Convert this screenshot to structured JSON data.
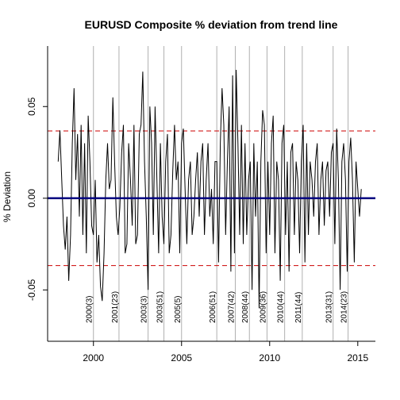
{
  "chart_data": {
    "type": "line",
    "title": "EURUSD Composite  % deviation from trend line",
    "xlabel": "",
    "ylabel": "% Deviation",
    "xlim": [
      1997.4,
      2016.0
    ],
    "ylim": [
      -0.078,
      0.083
    ],
    "x_ticks": [
      2000,
      2005,
      2010,
      2015
    ],
    "x_tick_labels": [
      "2000",
      "2005",
      "2010",
      "2015"
    ],
    "y_ticks": [
      -0.05,
      0.0,
      0.05
    ],
    "y_tick_labels": [
      "-0.05",
      "0.00",
      "0.05"
    ],
    "zero_line": 0.0,
    "threshold_lines": [
      0.0367,
      -0.0367
    ],
    "colors": {
      "series": "#000000",
      "zero_line": "#000080",
      "threshold": "#cc0000",
      "markers": "#b0b0b0"
    },
    "markers": [
      {
        "x": 2000.0,
        "label": "2000(3)"
      },
      {
        "x": 2001.45,
        "label": "2001(23)"
      },
      {
        "x": 2003.1,
        "label": "2003(3)"
      },
      {
        "x": 2004.0,
        "label": "2003(51)"
      },
      {
        "x": 2005.0,
        "label": "2005(5)"
      },
      {
        "x": 2007.0,
        "label": "2006(51)"
      },
      {
        "x": 2008.05,
        "label": "2007(42)"
      },
      {
        "x": 2008.85,
        "label": "2008(44)"
      },
      {
        "x": 2009.85,
        "label": "2009(36)"
      },
      {
        "x": 2010.85,
        "label": "2010(44)"
      },
      {
        "x": 2011.85,
        "label": "2011(44)"
      },
      {
        "x": 2013.6,
        "label": "2013(31)"
      },
      {
        "x": 2014.45,
        "label": "2014(23)"
      }
    ],
    "series": [
      {
        "x": [
          1998.0,
          1998.1,
          1998.2,
          1998.3,
          1998.4,
          1998.5,
          1998.6,
          1998.7,
          1998.8,
          1998.9,
          1999.0,
          1999.1,
          1999.2,
          1999.3,
          1999.4,
          1999.5,
          1999.6,
          1999.7,
          1999.8,
          1999.9,
          2000.0,
          2000.1,
          2000.2,
          2000.3,
          2000.4,
          2000.5,
          2000.6,
          2000.7,
          2000.8,
          2000.9,
          2001.0,
          2001.1,
          2001.2,
          2001.3,
          2001.4,
          2001.5,
          2001.6,
          2001.7,
          2001.8,
          2001.9,
          2002.0,
          2002.1,
          2002.2,
          2002.3,
          2002.4,
          2002.5,
          2002.6,
          2002.7,
          2002.8,
          2002.9,
          2003.0,
          2003.1,
          2003.2,
          2003.3,
          2003.4,
          2003.5,
          2003.6,
          2003.7,
          2003.8,
          2003.9,
          2004.0,
          2004.1,
          2004.2,
          2004.3,
          2004.4,
          2004.5,
          2004.6,
          2004.7,
          2004.8,
          2004.9,
          2005.0,
          2005.1,
          2005.2,
          2005.3,
          2005.4,
          2005.5,
          2005.6,
          2005.7,
          2005.8,
          2005.9,
          2006.0,
          2006.1,
          2006.2,
          2006.3,
          2006.4,
          2006.5,
          2006.6,
          2006.7,
          2006.8,
          2006.9,
          2007.0,
          2007.1,
          2007.2,
          2007.3,
          2007.4,
          2007.5,
          2007.6,
          2007.7,
          2007.8,
          2007.9,
          2008.0,
          2008.1,
          2008.2,
          2008.3,
          2008.4,
          2008.5,
          2008.6,
          2008.7,
          2008.8,
          2008.9,
          2009.0,
          2009.1,
          2009.2,
          2009.3,
          2009.4,
          2009.5,
          2009.6,
          2009.7,
          2009.8,
          2009.9,
          2010.0,
          2010.1,
          2010.2,
          2010.3,
          2010.4,
          2010.5,
          2010.6,
          2010.7,
          2010.8,
          2010.9,
          2011.0,
          2011.1,
          2011.2,
          2011.3,
          2011.4,
          2011.5,
          2011.6,
          2011.7,
          2011.8,
          2011.9,
          2012.0,
          2012.1,
          2012.2,
          2012.3,
          2012.4,
          2012.5,
          2012.6,
          2012.7,
          2012.8,
          2012.9,
          2013.0,
          2013.1,
          2013.2,
          2013.3,
          2013.4,
          2013.5,
          2013.6,
          2013.7,
          2013.8,
          2013.9,
          2014.0,
          2014.1,
          2014.2,
          2014.3,
          2014.4,
          2014.5,
          2014.6,
          2014.7,
          2014.8,
          2014.9,
          2015.0,
          2015.1,
          2015.2
        ],
        "y": [
          0.02,
          0.037,
          0.01,
          -0.015,
          -0.028,
          -0.01,
          -0.045,
          -0.02,
          0.03,
          0.06,
          0.01,
          0.035,
          -0.01,
          0.04,
          -0.02,
          0.03,
          -0.03,
          0.045,
          0.02,
          -0.015,
          -0.02,
          0.01,
          -0.035,
          -0.02,
          -0.048,
          -0.056,
          -0.03,
          0.01,
          0.03,
          0.005,
          0.01,
          0.055,
          0.02,
          -0.01,
          -0.02,
          -0.005,
          0.025,
          0.04,
          -0.03,
          -0.025,
          0.03,
          0.01,
          -0.015,
          0.04,
          -0.025,
          -0.02,
          0.035,
          0.04,
          0.069,
          0.02,
          -0.01,
          -0.05,
          0.05,
          0.03,
          -0.02,
          0.05,
          0.01,
          -0.03,
          0.03,
          -0.01,
          -0.025,
          0.02,
          0.035,
          -0.03,
          -0.02,
          0.015,
          0.04,
          0.01,
          0.02,
          -0.03,
          0.03,
          0.038,
          0.005,
          -0.025,
          0.01,
          0.02,
          -0.02,
          -0.01,
          0.01,
          0.025,
          -0.01,
          0.02,
          0.03,
          -0.02,
          0.01,
          0.03,
          -0.01,
          0.005,
          -0.025,
          0.02,
          0.02,
          -0.035,
          0.03,
          0.06,
          0.04,
          -0.02,
          0.02,
          0.05,
          -0.04,
          0.067,
          -0.03,
          0.07,
          0.03,
          -0.02,
          0.04,
          -0.025,
          0.03,
          -0.02,
          0.01,
          0.02,
          -0.05,
          0.03,
          -0.01,
          0.02,
          -0.06,
          0.02,
          0.048,
          0.04,
          -0.03,
          0.02,
          -0.02,
          0.03,
          0.045,
          -0.03,
          0.02,
          0.01,
          -0.045,
          0.03,
          0.04,
          -0.02,
          0.02,
          -0.04,
          0.025,
          0.03,
          -0.02,
          0.02,
          0.01,
          -0.03,
          0.02,
          0.04,
          -0.035,
          0.03,
          -0.02,
          0.02,
          0.01,
          -0.01,
          0.02,
          0.03,
          -0.02,
          0.01,
          0.02,
          -0.015,
          0.015,
          0.02,
          -0.01,
          0.025,
          0.03,
          -0.025,
          0.038,
          0.01,
          -0.05,
          0.02,
          0.03,
          0.01,
          -0.04,
          0.02,
          0.033,
          0.01,
          -0.035,
          0.02,
          0.005,
          -0.01,
          0.005
        ]
      }
    ]
  }
}
